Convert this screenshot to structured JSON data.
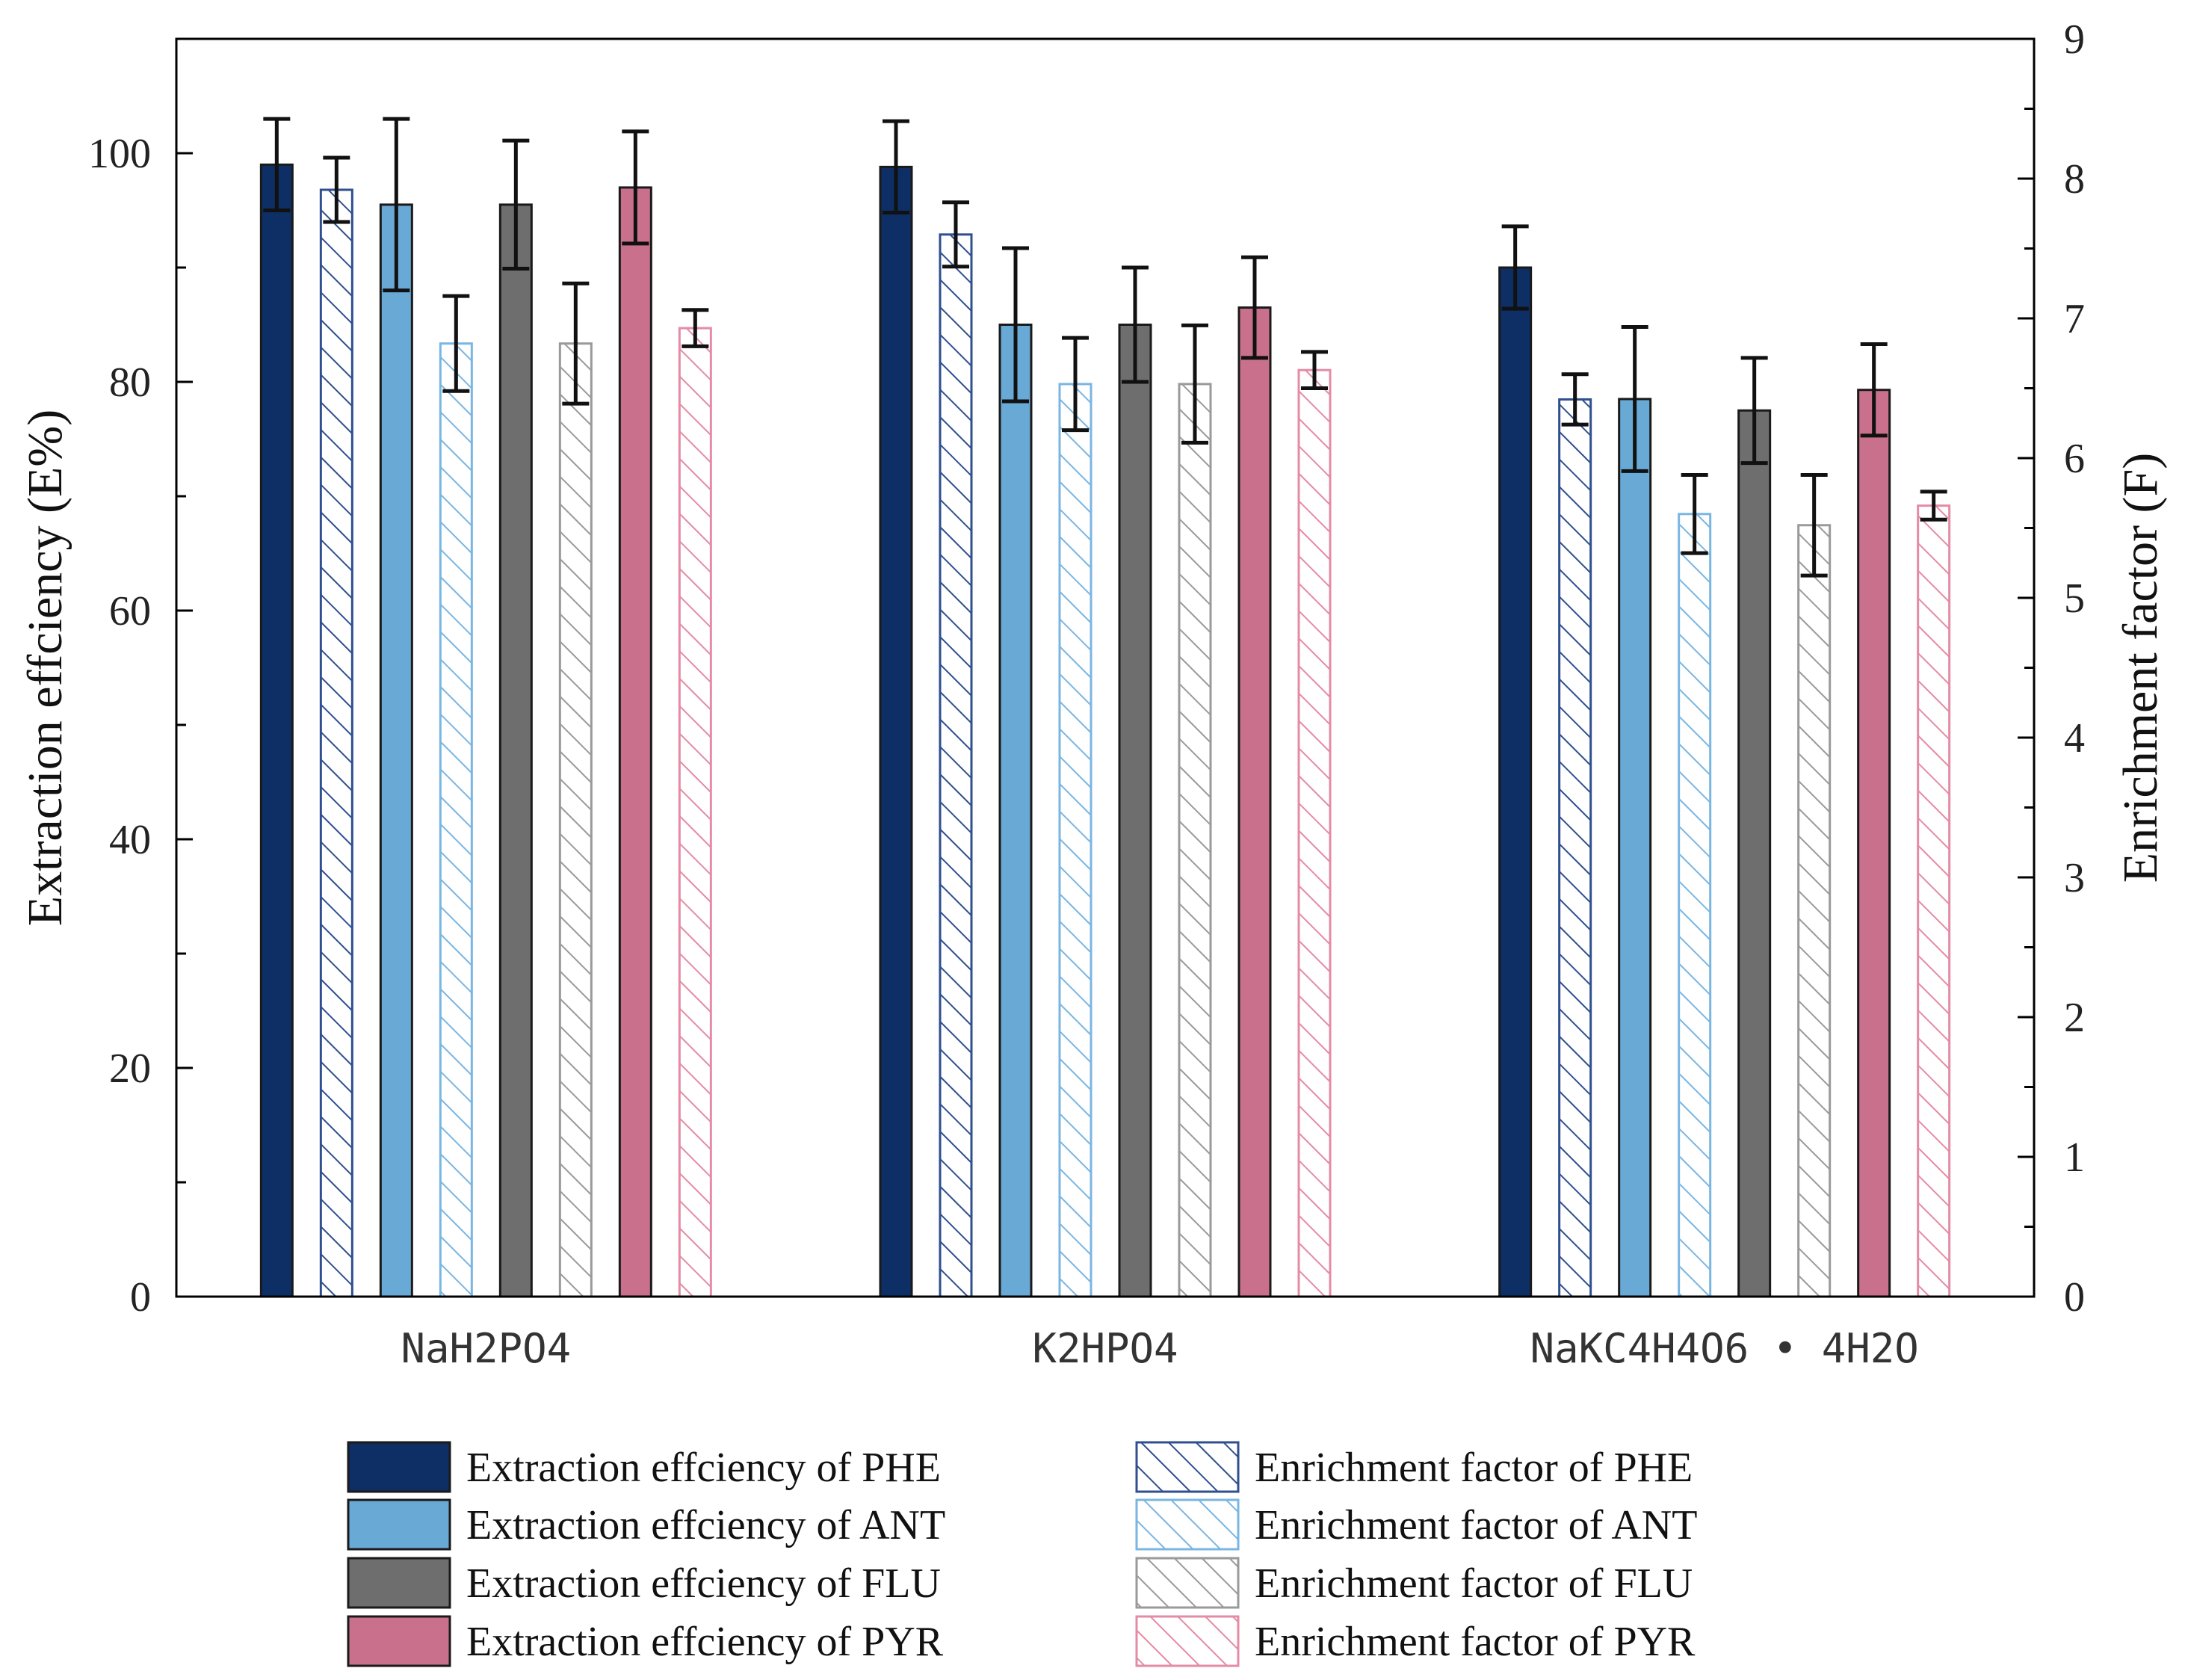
{
  "chart_data": {
    "type": "bar",
    "categories": [
      "NaH2PO4",
      "K2HPO4",
      "NaKC4H4O6 • 4H2O"
    ],
    "y_left": {
      "label": "Extraction effciency (E%)",
      "lim": [
        0,
        110
      ],
      "ticks": [
        0,
        20,
        40,
        60,
        80,
        100
      ]
    },
    "y_right": {
      "label": "Enrichment factor (F)",
      "lim": [
        0,
        9
      ],
      "ticks": [
        0,
        1,
        2,
        3,
        4,
        5,
        6,
        7,
        8,
        9
      ]
    },
    "series": [
      {
        "name": "Extraction effciency of PHE",
        "axis": "left",
        "style": "solid",
        "color": "#0d2f66",
        "values": [
          99.0,
          98.8,
          90.0
        ],
        "errors": [
          4.0,
          4.0,
          3.6
        ]
      },
      {
        "name": "Enrichment factor of PHE",
        "axis": "right",
        "style": "hatch",
        "color": "#2f4f8f",
        "values": [
          7.92,
          7.6,
          6.42
        ],
        "errors": [
          0.23,
          0.23,
          0.18
        ]
      },
      {
        "name": "Extraction effciency of ANT",
        "axis": "left",
        "style": "solid",
        "color": "#69a9d6",
        "values": [
          95.5,
          85.0,
          78.5
        ],
        "errors": [
          7.5,
          6.7,
          6.3
        ]
      },
      {
        "name": "Enrichment factor of ANT",
        "axis": "right",
        "style": "hatch",
        "color": "#7ab6e2",
        "values": [
          6.82,
          6.53,
          5.6
        ],
        "errors": [
          0.34,
          0.33,
          0.28
        ]
      },
      {
        "name": "Extraction effciency of FLU",
        "axis": "left",
        "style": "solid",
        "color": "#6e6e6e",
        "values": [
          95.5,
          85.0,
          77.5
        ],
        "errors": [
          5.6,
          5.0,
          4.6
        ]
      },
      {
        "name": "Enrichment factor of FLU",
        "axis": "right",
        "style": "hatch",
        "color": "#9a9a9a",
        "values": [
          6.82,
          6.53,
          5.52
        ],
        "errors": [
          0.43,
          0.42,
          0.36
        ]
      },
      {
        "name": "Extraction effciency of PYR",
        "axis": "left",
        "style": "solid",
        "color": "#c9718c",
        "values": [
          97.0,
          86.5,
          79.3
        ],
        "errors": [
          4.9,
          4.4,
          4.0
        ]
      },
      {
        "name": "Enrichment factor of PYR",
        "axis": "right",
        "style": "hatch",
        "color": "#e48ba6",
        "values": [
          6.93,
          6.63,
          5.66
        ],
        "errors": [
          0.13,
          0.13,
          0.1
        ]
      }
    ],
    "legend": [
      "Extraction effciency of PHE",
      "Enrichment factor of PHE",
      "Extraction effciency of ANT",
      "Enrichment factor of ANT",
      "Extraction effciency of FLU",
      "Enrichment factor of FLU",
      "Extraction effciency of PYR",
      "Enrichment factor of PYR"
    ],
    "legend_position": "bottom-center"
  }
}
